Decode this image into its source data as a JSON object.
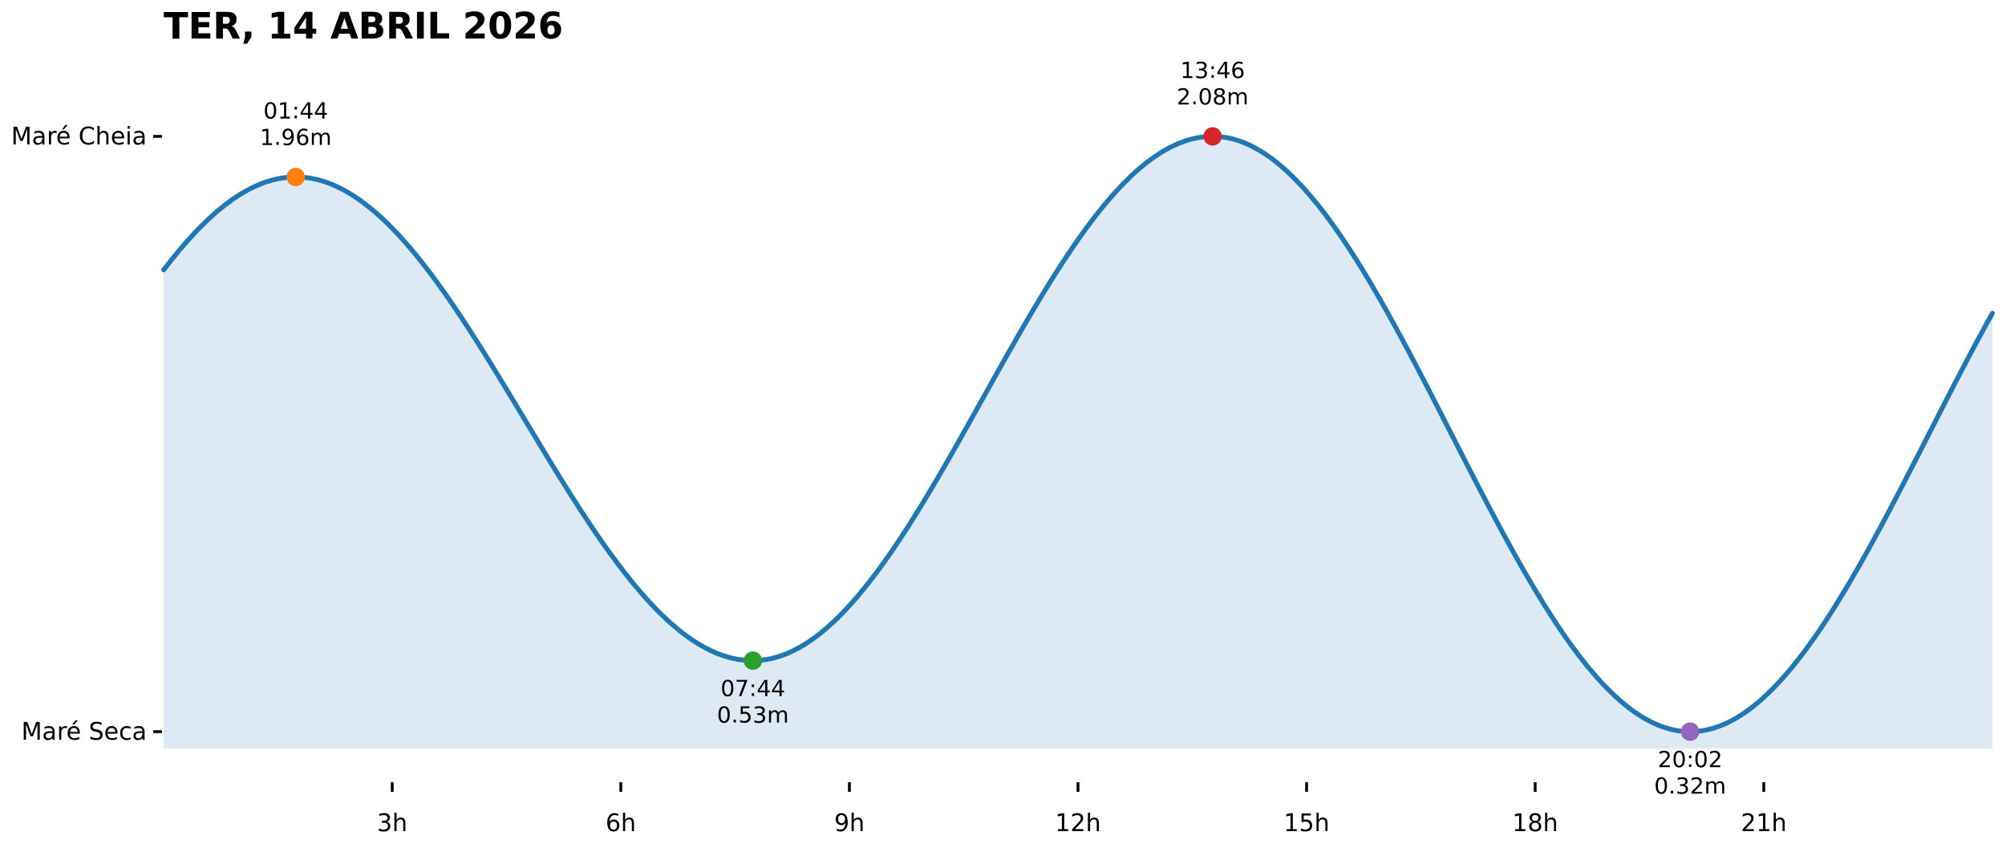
{
  "chart_data": {
    "type": "area",
    "title": "TER, 14 ABRIL 2026",
    "x_unit": "hours",
    "xlim": [
      0,
      24
    ],
    "grid": false,
    "legend": "none",
    "x_ticks": [
      {
        "t": 3,
        "label": "3h"
      },
      {
        "t": 6,
        "label": "6h"
      },
      {
        "t": 9,
        "label": "9h"
      },
      {
        "t": 12,
        "label": "12h"
      },
      {
        "t": 15,
        "label": "15h"
      },
      {
        "t": 18,
        "label": "18h"
      },
      {
        "t": 21,
        "label": "21h"
      }
    ],
    "y_ticks": [
      {
        "label": "Maré Cheia",
        "value": 2.08
      },
      {
        "label": "Maré Seca",
        "value": 0.32
      }
    ],
    "events": [
      {
        "time": "01:44",
        "height_m": 1.96,
        "height_label": "1.96m",
        "type": "high",
        "color": "#ff7f0e",
        "label_position": "above"
      },
      {
        "time": "07:44",
        "height_m": 0.53,
        "height_label": "0.53m",
        "type": "low",
        "color": "#2ca02c",
        "label_position": "below"
      },
      {
        "time": "13:46",
        "height_m": 2.08,
        "height_label": "2.08m",
        "type": "high",
        "color": "#d62728",
        "label_position": "above"
      },
      {
        "time": "20:02",
        "height_m": 0.32,
        "height_label": "0.32m",
        "type": "low",
        "color": "#9467bd",
        "label_position": "below"
      }
    ],
    "colors": {
      "line": "#1f77b4",
      "fill": "#dde9f4",
      "axis": "#000000"
    }
  }
}
